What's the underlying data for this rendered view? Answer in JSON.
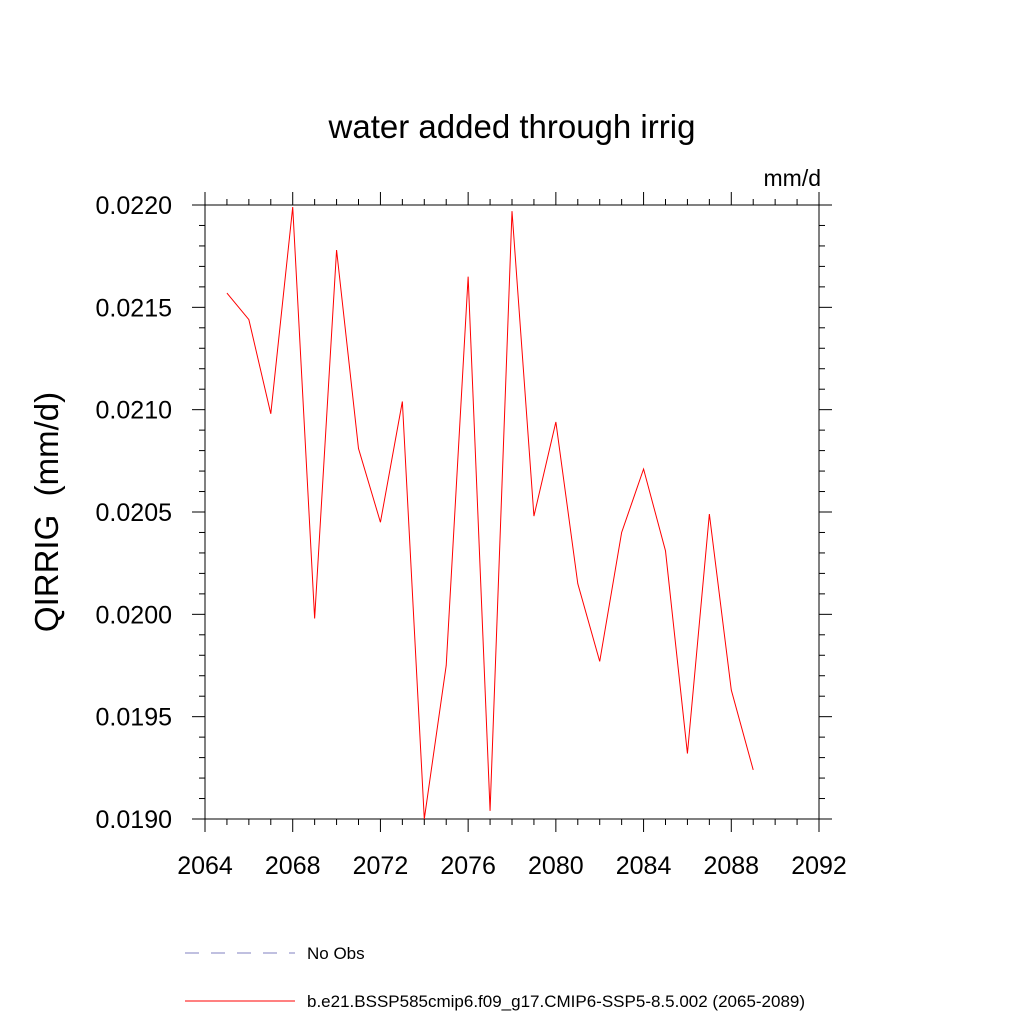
{
  "chart_data": {
    "type": "line",
    "title": "water added through irrig",
    "units_label": "mm/d",
    "ylabel": "QIRRIG  (mm/d)",
    "xlabel": "",
    "xlim": [
      2064,
      2092
    ],
    "ylim": [
      0.019,
      0.022
    ],
    "x_ticks": [
      2064,
      2068,
      2072,
      2076,
      2080,
      2084,
      2088,
      2092
    ],
    "x_tick_labels": [
      "2064",
      "2068",
      "2072",
      "2076",
      "2080",
      "2084",
      "2088",
      "2092"
    ],
    "y_ticks": [
      0.019,
      0.0195,
      0.02,
      0.0205,
      0.021,
      0.0215,
      0.022
    ],
    "y_tick_labels": [
      "0.0190",
      "0.0195",
      "0.0200",
      "0.0205",
      "0.0210",
      "0.0215",
      "0.0220"
    ],
    "grid": false,
    "legend_position": "bottom",
    "series": [
      {
        "name": "b.e21.BSSP585cmip6.f09_g17.CMIP6-SSP5-8.5.002 (2065-2089)",
        "color": "#ff0000",
        "x": [
          2065,
          2066,
          2067,
          2068,
          2069,
          2070,
          2071,
          2072,
          2073,
          2074,
          2075,
          2076,
          2077,
          2078,
          2079,
          2080,
          2081,
          2082,
          2083,
          2084,
          2085,
          2086,
          2087,
          2088,
          2089
        ],
        "y": [
          0.02157,
          0.02144,
          0.02098,
          0.02199,
          0.01998,
          0.02178,
          0.02081,
          0.02045,
          0.02104,
          0.019,
          0.01975,
          0.02165,
          0.01904,
          0.02197,
          0.02048,
          0.02094,
          0.02015,
          0.01977,
          0.0204,
          0.02071,
          0.02031,
          0.01932,
          0.02049,
          0.01963,
          0.01924
        ]
      }
    ],
    "legend": [
      {
        "label": "No Obs",
        "color": "#8080c0",
        "style": "dashed"
      },
      {
        "label": "b.e21.BSSP585cmip6.f09_g17.CMIP6-SSP5-8.5.002 (2065-2089)",
        "color": "#ff0000",
        "style": "solid"
      }
    ]
  }
}
